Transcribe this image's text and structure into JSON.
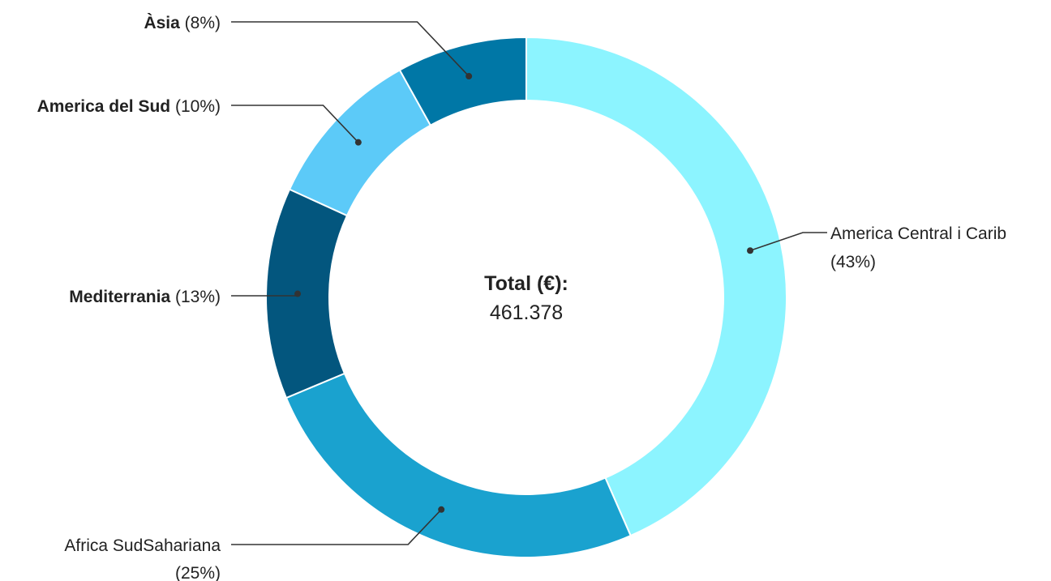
{
  "chart_data": {
    "type": "pie",
    "style": "donut",
    "center_label": "Total (€):",
    "center_value": "461.378",
    "slices": [
      {
        "name": "America Central i Carib",
        "percent_label": "(43%)",
        "value": 43,
        "color": "#8cf4ff"
      },
      {
        "name": "Africa SudSahariana",
        "percent_label": "(25%)",
        "value": 25,
        "color": "#1aa2cf"
      },
      {
        "name": "Mediterrania",
        "percent_label": "(13%)",
        "value": 13,
        "color": "#03567e"
      },
      {
        "name": "America del Sud",
        "percent_label": "(10%)",
        "value": 10,
        "color": "#5ccaf8"
      },
      {
        "name": "Àsia",
        "percent_label": "(8%)",
        "value": 8,
        "color": "#0077a6"
      }
    ]
  }
}
